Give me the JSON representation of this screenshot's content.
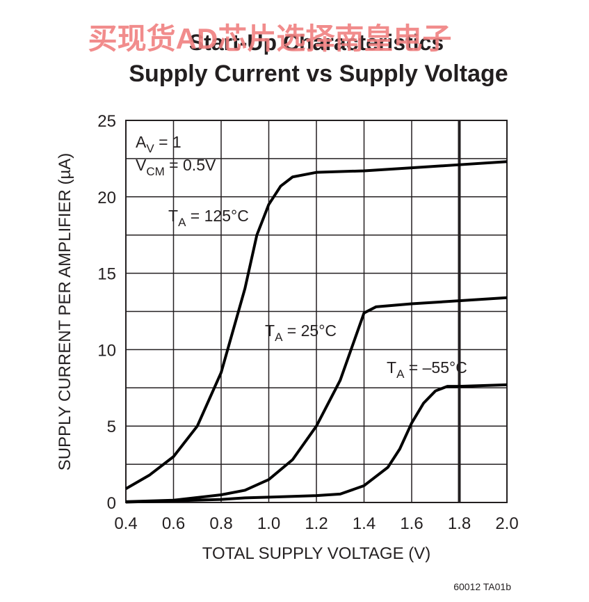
{
  "watermark": "买现货AD芯片选择南皇电子",
  "chart_data": {
    "type": "line",
    "title": "Start-Up Characteristics",
    "subtitle": "Supply Current vs Supply Voltage",
    "xlabel": "TOTAL SUPPLY VOLTAGE (V)",
    "ylabel": "SUPPLY CURRENT PER AMPLIFIER (µA)",
    "xlim": [
      0.4,
      2.0
    ],
    "ylim": [
      0,
      25
    ],
    "xticks": [
      0.4,
      0.6,
      0.8,
      {
        "value": 1,
        "label": "1.0"
      },
      1.2,
      1.4,
      1.6,
      1.8,
      {
        "value": 2,
        "label": "2.0"
      }
    ],
    "yticks": [
      0,
      5,
      10,
      15,
      20,
      25
    ],
    "yticks_minor": [
      2.5,
      7.5,
      12.5,
      17.5,
      22.5
    ],
    "marker_x": 1.8,
    "grid": true,
    "color": "#000000",
    "annotations": [
      [
        "A",
        "V",
        " = 1"
      ],
      [
        "V",
        "CM",
        " = 0.5V"
      ]
    ],
    "series": [
      {
        "label": [
          "T",
          "A",
          " = 125°C"
        ],
        "x": [
          0.4,
          0.5,
          0.6,
          0.7,
          0.8,
          0.9,
          0.95,
          1.0,
          1.05,
          1.1,
          1.2,
          1.4,
          1.6,
          1.8,
          2.0
        ],
        "values": [
          0.9,
          1.8,
          3.0,
          5.0,
          8.5,
          14,
          17.5,
          19.5,
          20.7,
          21.3,
          21.6,
          21.7,
          21.9,
          22.1,
          22.3
        ]
      },
      {
        "label": [
          "T",
          "A",
          " = 25°C"
        ],
        "x": [
          0.4,
          0.6,
          0.8,
          0.9,
          1.0,
          1.1,
          1.2,
          1.3,
          1.35,
          1.4,
          1.45,
          1.6,
          1.8,
          2.0
        ],
        "values": [
          0.05,
          0.15,
          0.5,
          0.8,
          1.5,
          2.8,
          5.0,
          8.0,
          10.2,
          12.4,
          12.8,
          13.0,
          13.2,
          13.4
        ]
      },
      {
        "label": [
          "T",
          "A",
          " = –55°C"
        ],
        "x": [
          0.4,
          0.8,
          0.9,
          1.0,
          1.2,
          1.3,
          1.4,
          1.5,
          1.55,
          1.6,
          1.65,
          1.7,
          1.75,
          1.8,
          2.0
        ],
        "values": [
          0.02,
          0.2,
          0.3,
          0.35,
          0.45,
          0.55,
          1.1,
          2.3,
          3.5,
          5.2,
          6.5,
          7.3,
          7.6,
          7.6,
          7.7
        ]
      }
    ],
    "footnote": "60012 TA01b"
  }
}
